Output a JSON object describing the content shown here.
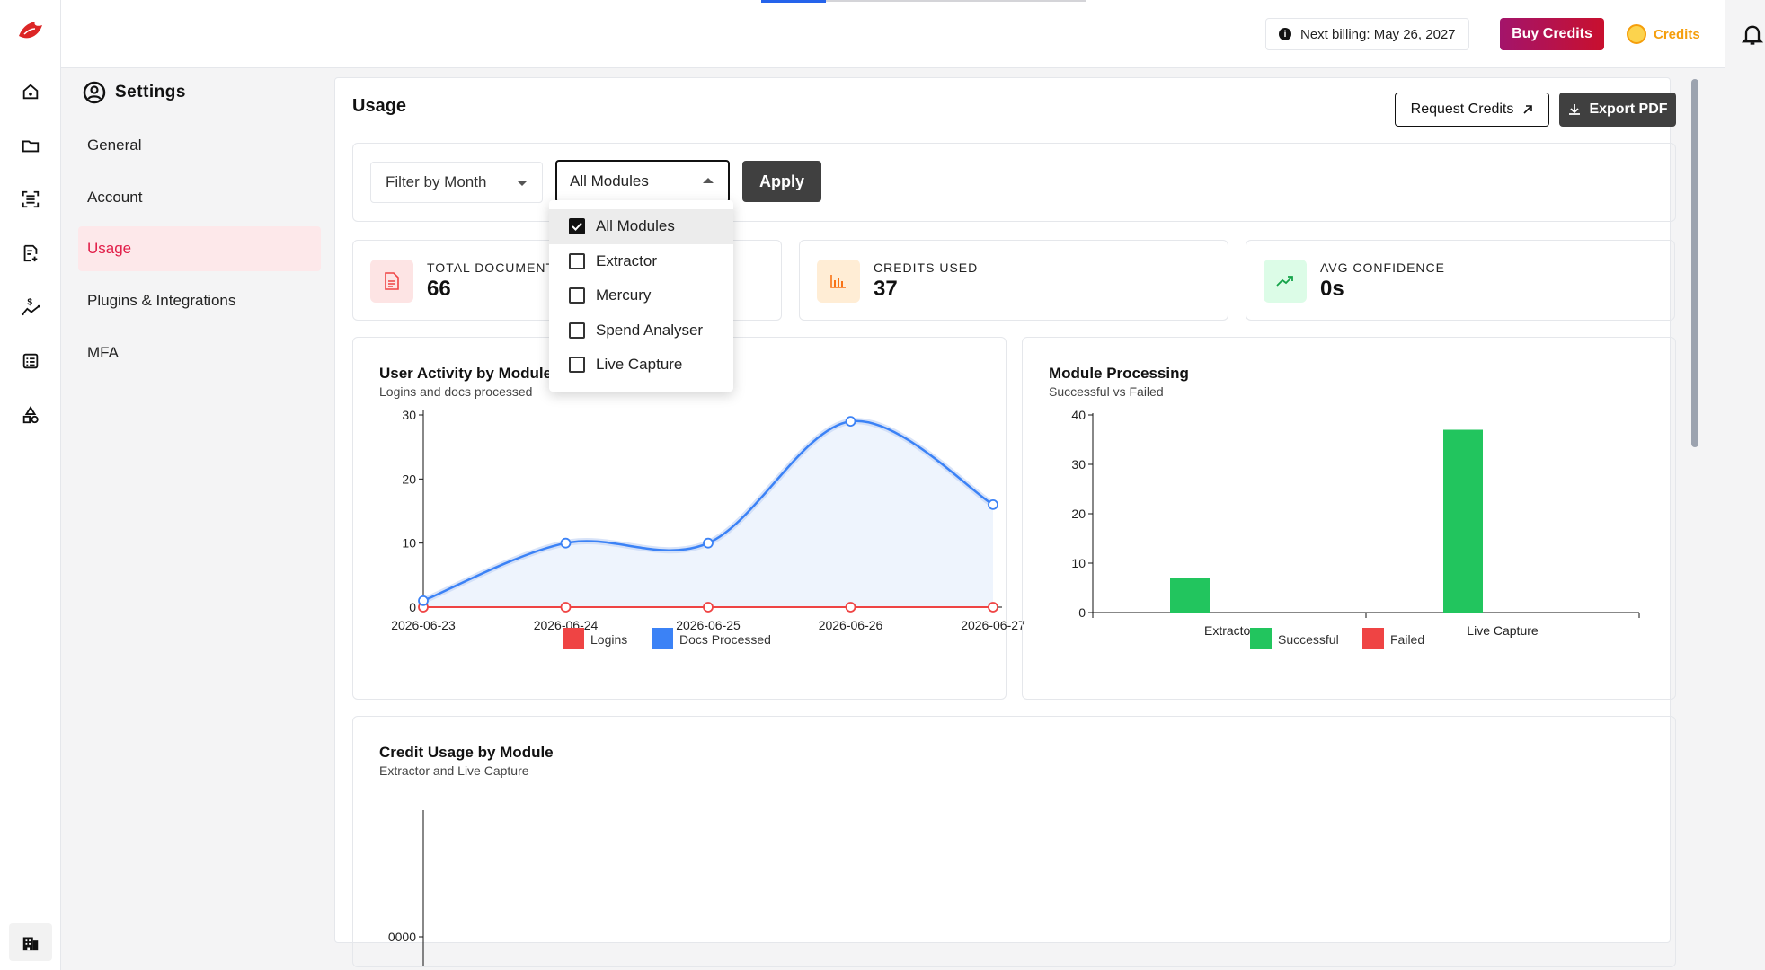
{
  "rail": {
    "items": [
      {
        "name": "home-icon"
      },
      {
        "name": "folder-icon"
      },
      {
        "name": "scan-icon"
      },
      {
        "name": "document-add-icon"
      },
      {
        "name": "dollar-trend-icon"
      },
      {
        "name": "list-icon"
      },
      {
        "name": "shapes-icon"
      }
    ]
  },
  "topbar": {
    "billing": "Next billing: May 26, 2027",
    "buy_label": "Buy Credits",
    "credits_label": "Credits"
  },
  "settings": {
    "title": "Settings",
    "items": [
      {
        "label": "General",
        "active": false
      },
      {
        "label": "Account",
        "active": false
      },
      {
        "label": "Usage",
        "active": true
      },
      {
        "label": "Plugins & Integrations",
        "active": false
      },
      {
        "label": "MFA",
        "active": false
      }
    ]
  },
  "usage": {
    "title": "Usage",
    "request_label": "Request Credits",
    "export_label": "Export PDF",
    "filter_month": "Filter by Month",
    "module_select": "All Modules",
    "apply_label": "Apply",
    "dropdown_options": [
      {
        "label": "All Modules",
        "checked": true
      },
      {
        "label": "Extractor",
        "checked": false
      },
      {
        "label": "Mercury",
        "checked": false
      },
      {
        "label": "Spend Analyser",
        "checked": false
      },
      {
        "label": "Live Capture",
        "checked": false
      }
    ],
    "stats": [
      {
        "label": "TOTAL DOCUMENTS",
        "value": "66"
      },
      {
        "label": "CREDITS USED",
        "value": "37"
      },
      {
        "label": "AVG CONFIDENCE",
        "value": "0s"
      }
    ]
  },
  "colors": {
    "accent": "#e11d48",
    "logins": "#ef4444",
    "docs": "#3b82f6",
    "successful": "#22c55e",
    "failed": "#ef4444"
  },
  "chart_data": [
    {
      "type": "area",
      "title": "User Activity by Module",
      "subtitle": "Logins and docs processed",
      "categories": [
        "2026-06-23",
        "2026-06-24",
        "2026-06-25",
        "2026-06-26",
        "2026-06-27"
      ],
      "series": [
        {
          "name": "Logins",
          "values": [
            0,
            0,
            0,
            0,
            0
          ]
        },
        {
          "name": "Docs Processed",
          "values": [
            1,
            10,
            10,
            29,
            16
          ]
        }
      ],
      "ylim": [
        0,
        30
      ],
      "yticks": [
        0,
        10,
        20,
        30
      ],
      "legend": "bottom"
    },
    {
      "type": "bar",
      "title": "Module Processing",
      "subtitle": "Successful vs Failed",
      "categories": [
        "Extractor",
        "Live Capture"
      ],
      "series": [
        {
          "name": "Successful",
          "values": [
            7,
            37
          ]
        },
        {
          "name": "Failed",
          "values": [
            0,
            0
          ]
        }
      ],
      "ylim": [
        0,
        40
      ],
      "yticks": [
        0,
        10,
        20,
        30,
        40
      ],
      "legend": "bottom"
    },
    {
      "type": "bar",
      "title": "Credit Usage by Module",
      "subtitle": "Extractor and Live Capture",
      "ytick_partial": "0000"
    }
  ]
}
